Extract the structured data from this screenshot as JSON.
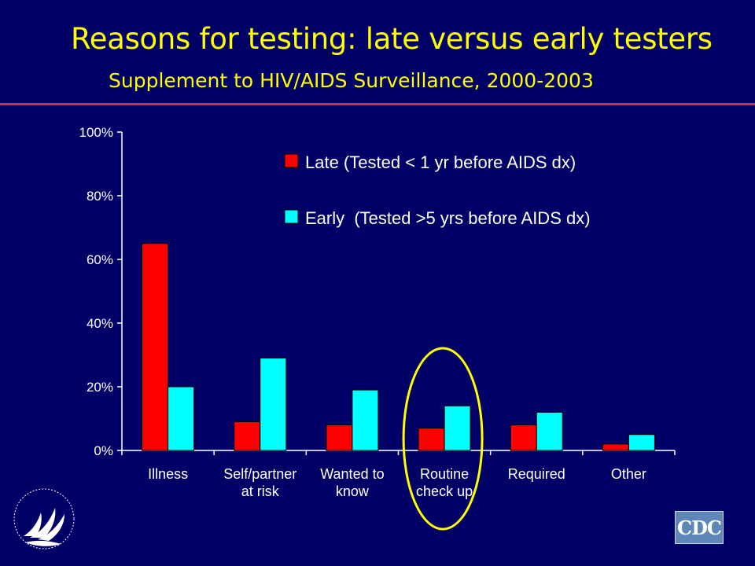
{
  "slide": {
    "title": "Reasons for testing: late versus early testers",
    "subtitle": "Supplement to HIV/AIDS Surveillance, 2000-2003",
    "title_color": "#ffff00",
    "background": "#000066",
    "rule_color": "#cc3333"
  },
  "chart_data": {
    "type": "bar",
    "title": "",
    "xlabel": "",
    "ylabel": "",
    "categories": [
      [
        "Illness"
      ],
      [
        "Self/partner",
        "at risk"
      ],
      [
        "Wanted to",
        "know"
      ],
      [
        "Routine",
        "check up"
      ],
      [
        "Required"
      ],
      [
        "Other"
      ]
    ],
    "series": [
      {
        "name": "Late (Tested < 1 yr before AIDS dx)",
        "color": "#ff0000",
        "values": [
          65,
          9,
          8,
          7,
          8,
          2
        ]
      },
      {
        "name": "Early  (Tested >5 yrs before AIDS dx)",
        "color": "#00ffff",
        "values": [
          20,
          29,
          19,
          14,
          12,
          5
        ]
      }
    ],
    "ylim": [
      0,
      100
    ],
    "yticks": [
      0,
      20,
      40,
      60,
      80,
      100
    ],
    "ytick_labels": [
      "0%",
      "20%",
      "40%",
      "60%",
      "80%",
      "100%"
    ],
    "grid": false,
    "legend_position": "top-right",
    "highlight": {
      "category_index": 3,
      "shape": "ellipse",
      "color": "#ffff00"
    }
  },
  "logos": {
    "left": "hhs-eagle-seal",
    "right_text": "CDC",
    "right_color": "#5e86b7"
  }
}
